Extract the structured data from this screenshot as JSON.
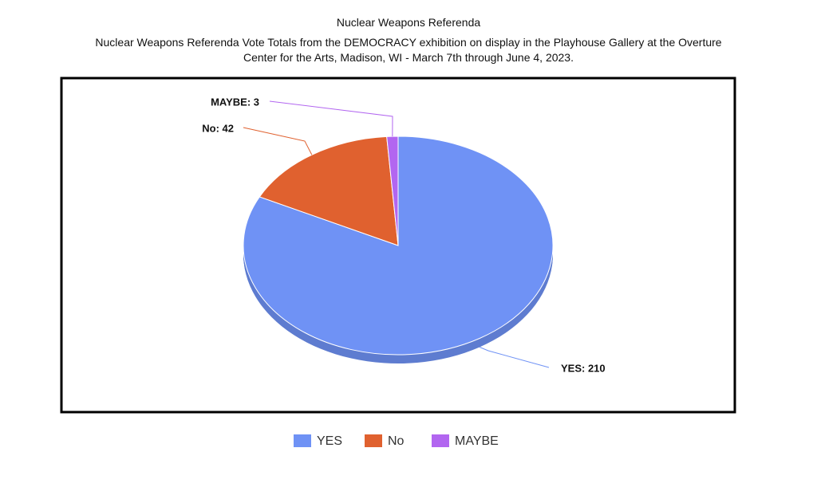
{
  "chart_data": {
    "type": "pie",
    "title": "Nuclear Weapons Referenda",
    "subtitle": "Nuclear Weapons Referenda Vote Totals from the DEMOCRACY exhibition on display in the Playhouse Gallery at the Overture Center for the Arts, Madison, WI - March 7th through June 4, 2023.",
    "categories": [
      "YES",
      "No",
      "MAYBE"
    ],
    "values": [
      210,
      42,
      3
    ],
    "value_labels": [
      "YES: 210",
      "No: 42",
      "MAYBE: 3"
    ],
    "colors": [
      "#6f92f5",
      "#e0612f",
      "#b266f0"
    ]
  }
}
